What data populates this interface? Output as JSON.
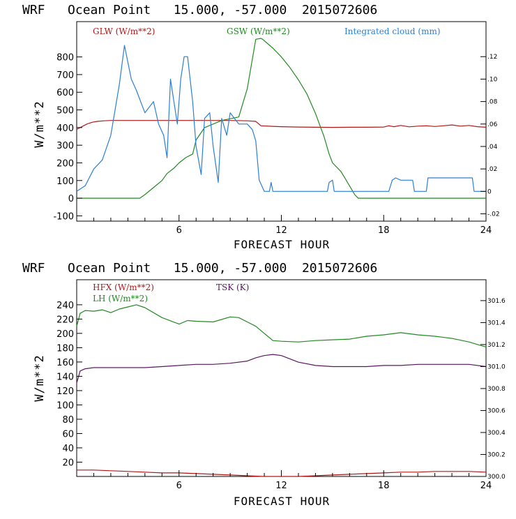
{
  "chart_data": [
    {
      "type": "line",
      "title": "WRF   Ocean Point   15.000, -57.000  2015072606",
      "xlabel": "FORECAST HOUR",
      "ylabel": "W/m**2",
      "xlim": [
        0,
        24
      ],
      "ylim": [
        -130,
        1000
      ],
      "x_ticks": [
        6,
        12,
        18,
        24
      ],
      "y_ticks": [
        -100,
        0,
        100,
        200,
        300,
        400,
        500,
        600,
        700,
        800
      ],
      "y2_lim": [
        -0.0265,
        0.1512
      ],
      "y2_ticks": [
        -0.02,
        0,
        0.02,
        0.04,
        0.06,
        0.08,
        0.1,
        0.12
      ],
      "y2_tick_labels": [
        "-.02",
        "0",
        ".02",
        ".04",
        ".06",
        ".08",
        ".10",
        ".12"
      ],
      "series": [
        {
          "name": "GLW (W/m**2)",
          "color": "#b01818",
          "axis": "left",
          "x": [
            0,
            0.2,
            0.4,
            0.6,
            0.9,
            1.2,
            1.6,
            2,
            3,
            4,
            5,
            6,
            7,
            8,
            9,
            10,
            10.5,
            10.8,
            11.5,
            12,
            13,
            14,
            15,
            16,
            17,
            18,
            18.3,
            18.6,
            19,
            19.5,
            20,
            20.5,
            21,
            21.5,
            22,
            22.5,
            23,
            23.5,
            24
          ],
          "values": [
            390,
            400,
            410,
            420,
            430,
            435,
            438,
            440,
            440,
            440,
            440,
            440,
            440,
            440,
            440,
            438,
            435,
            410,
            407,
            405,
            403,
            402,
            401,
            402,
            402,
            403,
            410,
            405,
            412,
            404,
            408,
            410,
            406,
            410,
            415,
            408,
            412,
            405,
            402
          ]
        },
        {
          "name": "GSW (W/m**2)",
          "color": "#208a20",
          "axis": "left",
          "x": [
            0,
            3.7,
            4,
            4.5,
            5,
            5.3,
            5.7,
            6,
            6.4,
            6.8,
            7,
            7.5,
            8,
            8.5,
            9,
            9.5,
            10,
            10.5,
            10.8,
            10.9,
            11.5,
            12,
            12.5,
            13,
            13.5,
            14,
            14.5,
            14.8,
            15,
            15.5,
            16,
            16.3,
            16.5,
            24
          ],
          "values": [
            0,
            0,
            20,
            60,
            100,
            140,
            170,
            200,
            230,
            250,
            330,
            400,
            420,
            440,
            450,
            460,
            620,
            900,
            905,
            900,
            850,
            800,
            740,
            670,
            590,
            480,
            350,
            250,
            200,
            150,
            70,
            20,
            0,
            0
          ]
        },
        {
          "name": "Integrated cloud (mm)",
          "color": "#2a7fd6",
          "axis": "right",
          "x": [
            0,
            0.5,
            1,
            1.5,
            2,
            2.5,
            2.8,
            3.2,
            3.5,
            4,
            4.5,
            4.8,
            5.1,
            5.3,
            5.5,
            5.7,
            5.9,
            6.1,
            6.3,
            6.5,
            6.8,
            7,
            7.3,
            7.5,
            7.8,
            8,
            8.3,
            8.5,
            8.8,
            9,
            9.5,
            10,
            10.3,
            10.5,
            10.7,
            11,
            11.3,
            11.4,
            11.5,
            14.7,
            14.8,
            15,
            15.1,
            18.3,
            18.5,
            18.7,
            19,
            19.5,
            19.7,
            19.8,
            20.5,
            20.6,
            23.2,
            23.3,
            24
          ],
          "values": [
            0,
            0.005,
            0.02,
            0.028,
            0.05,
            0.095,
            0.13,
            0.1,
            0.09,
            0.07,
            0.08,
            0.06,
            0.05,
            0.03,
            0.1,
            0.08,
            0.06,
            0.1,
            0.12,
            0.12,
            0.08,
            0.04,
            0.015,
            0.065,
            0.07,
            0.04,
            0.008,
            0.065,
            0.05,
            0.07,
            0.06,
            0.06,
            0.055,
            0.045,
            0.01,
            0,
            0,
            0.008,
            0,
            0,
            0.008,
            0.01,
            0,
            0,
            0.01,
            0.012,
            0.01,
            0.01,
            0.01,
            0,
            0,
            0.012,
            0.012,
            0,
            0
          ]
        }
      ]
    },
    {
      "type": "line",
      "title": "WRF   Ocean Point   15.000, -57.000  2015072606",
      "xlabel": "FORECAST HOUR",
      "ylabel": "W/m**2",
      "xlim": [
        0,
        24
      ],
      "ylim": [
        0,
        275
      ],
      "x_ticks": [
        6,
        12,
        18,
        24
      ],
      "y_ticks": [
        20,
        40,
        60,
        80,
        100,
        120,
        140,
        160,
        180,
        200,
        220,
        240
      ],
      "y2_lim": [
        300.0,
        301.79
      ],
      "y2_ticks": [
        300.0,
        300.2,
        300.4,
        300.6,
        300.8,
        301.0,
        301.2,
        301.4,
        301.6
      ],
      "y2_tick_labels": [
        "300.0",
        "300.2",
        "300.4",
        "300.6",
        "300.8",
        "301.0",
        "301.2",
        "301.4",
        "301.6"
      ],
      "series": [
        {
          "name": "HFX (W/m**2)",
          "color": "#b01818",
          "axis": "left",
          "x": [
            0,
            1,
            2,
            3,
            4,
            5,
            6,
            7,
            8,
            9,
            10,
            11,
            12,
            13,
            14,
            15,
            16,
            17,
            18,
            19,
            20,
            21,
            22,
            23,
            24
          ],
          "values": [
            9,
            9,
            8,
            7,
            6,
            5,
            5,
            4,
            3,
            2,
            1,
            0,
            0,
            0,
            1,
            2,
            3,
            4,
            5,
            6,
            6,
            7,
            7,
            7,
            6
          ]
        },
        {
          "name": "LH (W/m**2)",
          "color": "#208a20",
          "axis": "left",
          "x": [
            0,
            0.2,
            0.5,
            1,
            1.5,
            2,
            2.5,
            3,
            3.5,
            4,
            5,
            6,
            6.5,
            7,
            8,
            9,
            9.5,
            10,
            10.5,
            11,
            11.5,
            12,
            13,
            14,
            15,
            16,
            17,
            18,
            19,
            20,
            21,
            22,
            23,
            24
          ],
          "values": [
            210,
            228,
            232,
            231,
            233,
            229,
            234,
            237,
            240,
            236,
            222,
            213,
            218,
            217,
            216,
            223,
            222,
            216,
            210,
            200,
            190,
            189,
            188,
            190,
            191,
            192,
            196,
            198,
            201,
            198,
            196,
            193,
            188,
            181
          ]
        },
        {
          "name": "TSK (K)",
          "color": "#5a1860",
          "axis": "right",
          "x": [
            0,
            0.2,
            0.5,
            1,
            2,
            3,
            4,
            5,
            6,
            7,
            8,
            9,
            10,
            10.5,
            11,
            11.5,
            12,
            12.5,
            13,
            14,
            15,
            16,
            17,
            18,
            19,
            20,
            21,
            22,
            23,
            24
          ],
          "values": [
            300.85,
            300.96,
            300.98,
            300.99,
            300.99,
            300.99,
            300.99,
            301.0,
            301.01,
            301.02,
            301.02,
            301.03,
            301.05,
            301.08,
            301.1,
            301.11,
            301.1,
            301.07,
            301.04,
            301.01,
            301.0,
            301.0,
            301.0,
            301.01,
            301.01,
            301.02,
            301.02,
            301.02,
            301.02,
            301.0
          ]
        }
      ]
    }
  ]
}
